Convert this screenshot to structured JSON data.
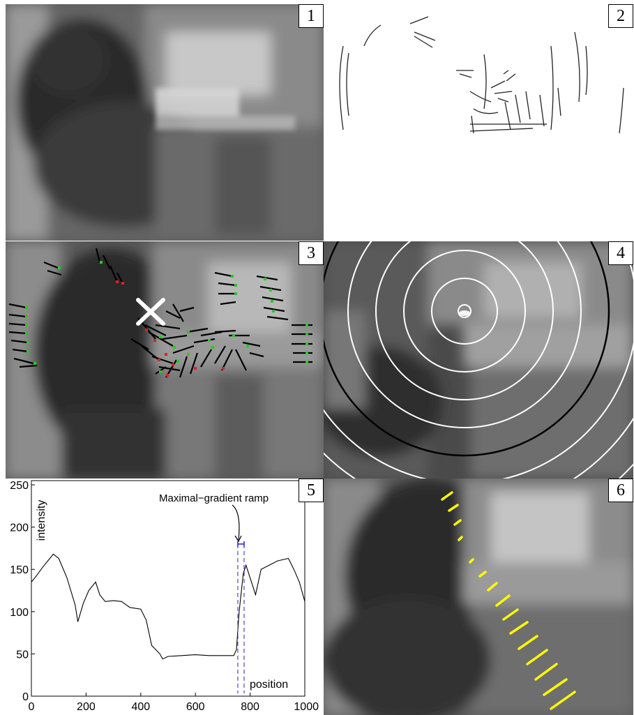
{
  "panels": [
    {
      "label": "1",
      "content": "blurred photograph of person at computer desk"
    },
    {
      "label": "2",
      "content": "edge map of blurred image"
    },
    {
      "label": "3",
      "content": "edge gradients with estimated blur center"
    },
    {
      "label": "4",
      "content": "concentric circles around blur center"
    },
    {
      "label": "5",
      "content": "intensity profile plot"
    },
    {
      "label": "6",
      "content": "maximal-gradient ramps along radial line"
    }
  ],
  "colors": {
    "photo_dark": "#2a2a2a",
    "photo_mid": "#6a6a6a",
    "photo_light": "#bdbdbd",
    "marker_green": "#22cc22",
    "marker_red": "#dd2222",
    "ramp_yellow": "#ffff00",
    "ramp_blue": "#2222cc"
  },
  "chart_data": {
    "type": "line",
    "xlabel": "position",
    "ylabel": "intensity",
    "xlim": [
      0,
      1000
    ],
    "ylim": [
      0,
      255
    ],
    "xticks": [
      0,
      200,
      400,
      600,
      800,
      1000
    ],
    "yticks": [
      0,
      50,
      100,
      150,
      200,
      250
    ],
    "annotation": "Maximal−gradient ramp",
    "ramp_interval": [
      755,
      778
    ],
    "series": [
      {
        "x": [
          0,
          20,
          40,
          60,
          80,
          100,
          130,
          160,
          170,
          190,
          210,
          235,
          250,
          270,
          300,
          330,
          360,
          400,
          420,
          440,
          470,
          480,
          500,
          550,
          600,
          650,
          700,
          740,
          750,
          760,
          775,
          785,
          800,
          820,
          840,
          870,
          900,
          940,
          960,
          980,
          1000
        ],
        "values": [
          135,
          143,
          152,
          160,
          168,
          163,
          140,
          108,
          88,
          110,
          125,
          135,
          120,
          112,
          113,
          112,
          105,
          103,
          90,
          60,
          50,
          44,
          47,
          48,
          49,
          48,
          48,
          48,
          55,
          100,
          145,
          155,
          140,
          120,
          150,
          155,
          160,
          163,
          150,
          135,
          112
        ]
      }
    ]
  }
}
